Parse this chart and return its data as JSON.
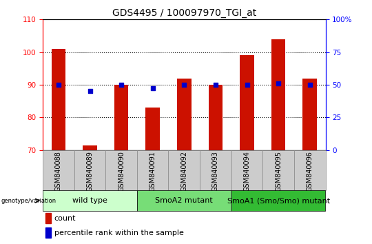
{
  "title": "GDS4495 / 100097970_TGI_at",
  "categories": [
    "GSM840088",
    "GSM840089",
    "GSM840090",
    "GSM840091",
    "GSM840092",
    "GSM840093",
    "GSM840094",
    "GSM840095",
    "GSM840096"
  ],
  "red_values": [
    101,
    71.5,
    90,
    83,
    92,
    90,
    99,
    104,
    92
  ],
  "blue_values": [
    90,
    88,
    90,
    89,
    90,
    90,
    90,
    90.5,
    90
  ],
  "left_ylim": [
    70,
    110
  ],
  "left_yticks": [
    70,
    80,
    90,
    100,
    110
  ],
  "right_ylim": [
    0,
    100
  ],
  "right_yticks": [
    0,
    25,
    50,
    75,
    100
  ],
  "right_yticklabels": [
    "0",
    "25",
    "50",
    "75",
    "100%"
  ],
  "bar_color": "#CC1100",
  "dot_color": "#0000CC",
  "groups": [
    {
      "label": "wild type",
      "start": 0,
      "end": 3,
      "color": "#CCFFCC"
    },
    {
      "label": "SmoA2 mutant",
      "start": 3,
      "end": 6,
      "color": "#77DD77"
    },
    {
      "label": "SmoA1 (Smo/Smo) mutant",
      "start": 6,
      "end": 9,
      "color": "#33BB33"
    }
  ],
  "legend_count_label": "count",
  "legend_percentile_label": "percentile rank within the sample",
  "genotype_label": "genotype/variation",
  "title_fontsize": 10,
  "tick_fontsize": 7.5,
  "legend_fontsize": 8,
  "group_fontsize": 8,
  "bar_width": 0.45
}
